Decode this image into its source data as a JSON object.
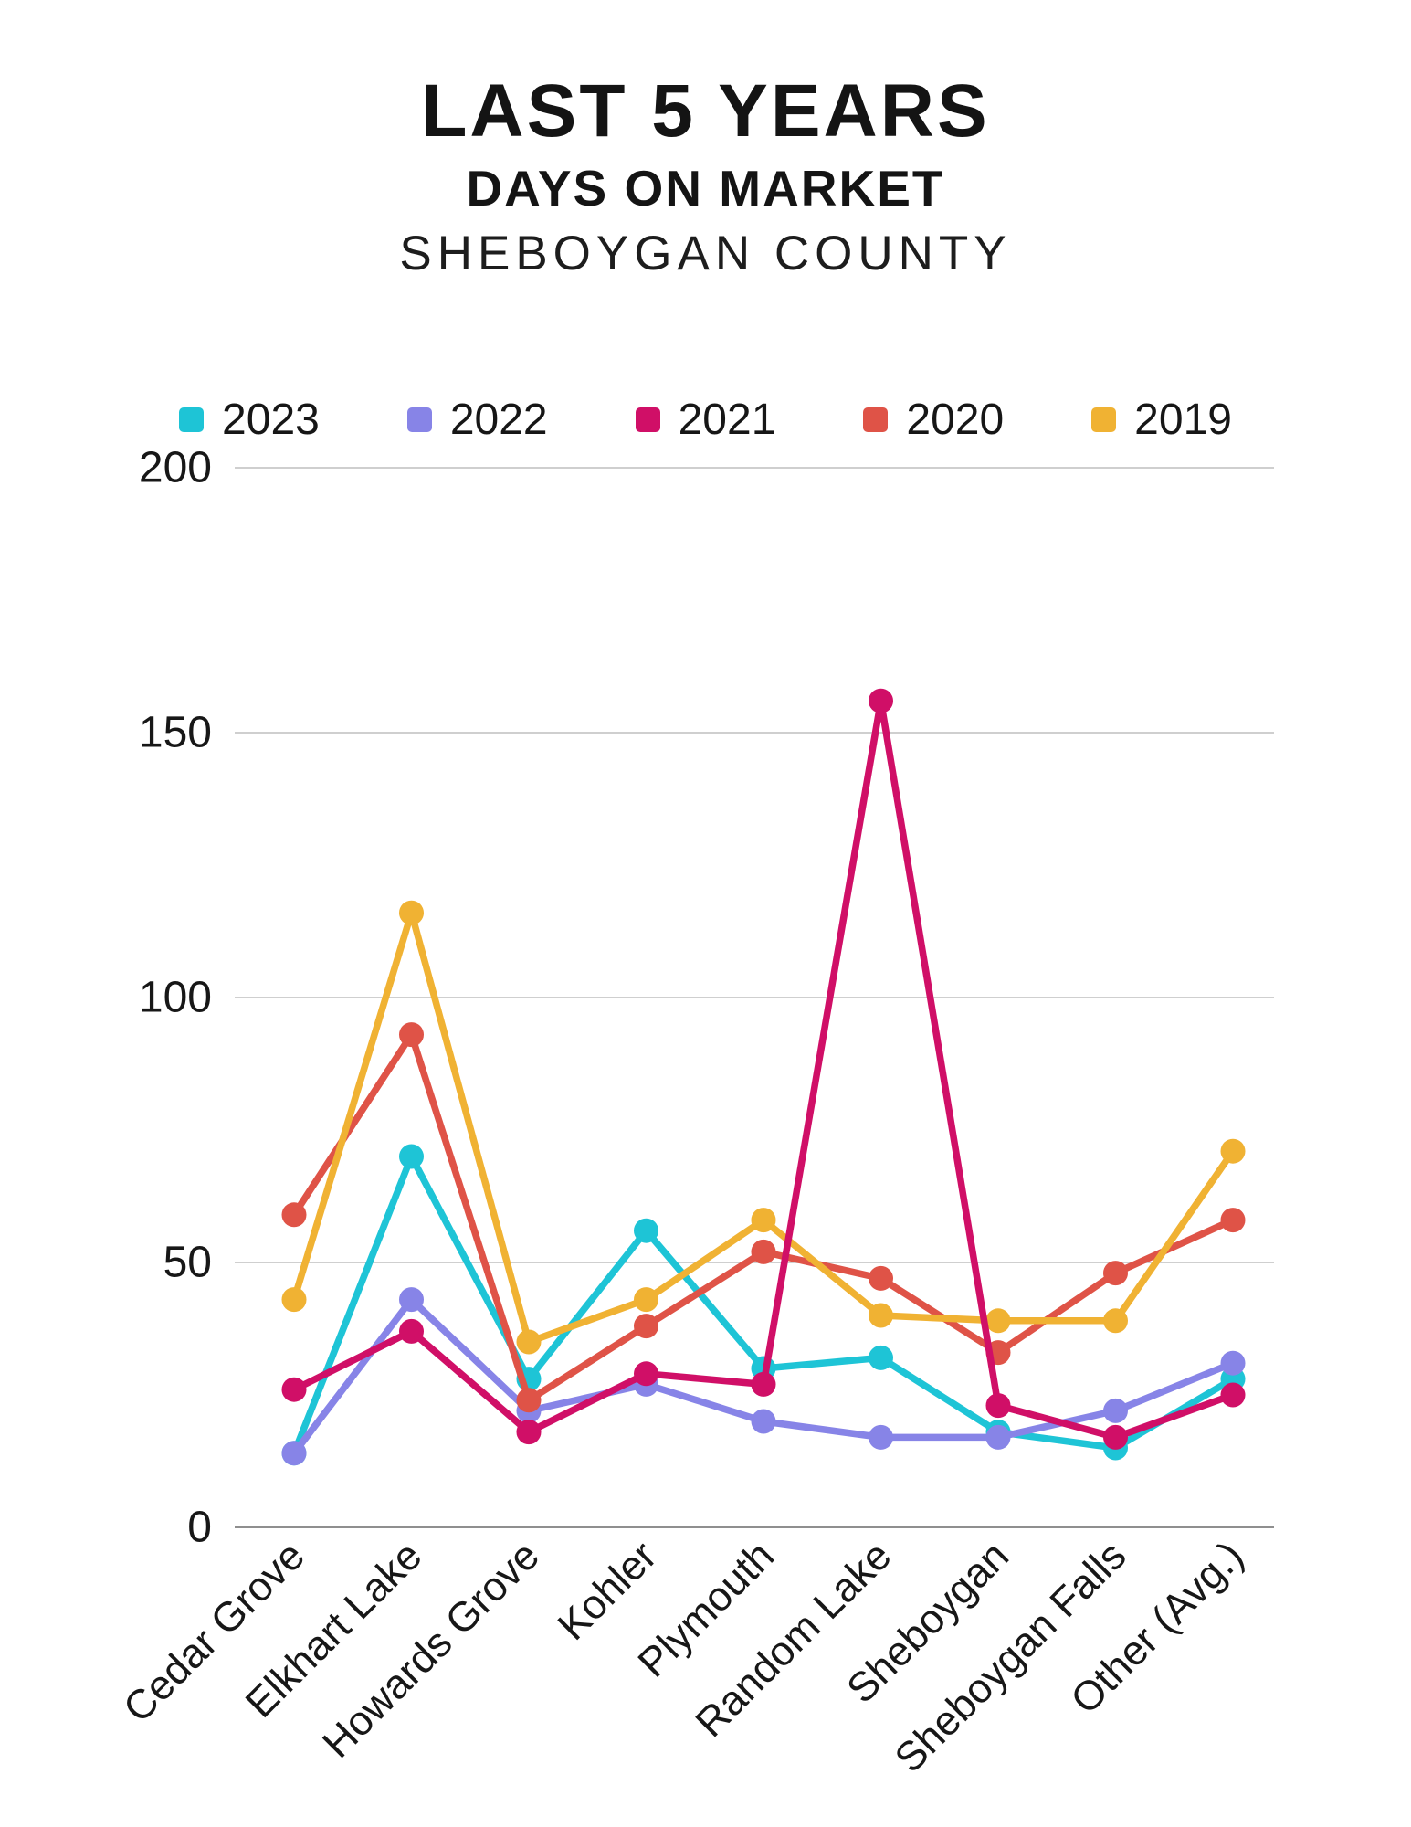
{
  "title": {
    "line1": "LAST 5 YEARS",
    "line2": "DAYS ON MARKET",
    "line3": "SHEBOYGAN COUNTY"
  },
  "chart_data": {
    "type": "line",
    "title": "LAST 5 YEARS DAYS ON MARKET SHEBOYGAN COUNTY",
    "xlabel": "",
    "ylabel": "",
    "categories": [
      "Cedar Grove",
      "Elkhart Lake",
      "Howards Grove",
      "Kohler",
      "Plymouth",
      "Random Lake",
      "Sheboygan",
      "Sheboygan Falls",
      "Other (Avg.)"
    ],
    "series": [
      {
        "name": "2023",
        "color": "#1ec4d6",
        "values": [
          14,
          70,
          28,
          56,
          30,
          32,
          18,
          15,
          28
        ]
      },
      {
        "name": "2022",
        "color": "#8784e7",
        "values": [
          14,
          43,
          22,
          27,
          20,
          17,
          17,
          22,
          31
        ]
      },
      {
        "name": "2021",
        "color": "#d00f67",
        "values": [
          26,
          37,
          18,
          29,
          27,
          156,
          23,
          17,
          25
        ]
      },
      {
        "name": "2020",
        "color": "#df5347",
        "values": [
          59,
          93,
          24,
          38,
          52,
          47,
          33,
          48,
          58
        ]
      },
      {
        "name": "2019",
        "color": "#f0b233",
        "values": [
          43,
          116,
          35,
          43,
          58,
          40,
          39,
          39,
          71
        ]
      }
    ],
    "yticks": [
      0,
      50,
      100,
      150,
      200
    ],
    "ylim": [
      0,
      200
    ],
    "grid": true,
    "legend_position": "top",
    "gridline_color": "#cfcfcf",
    "baseline_color": "#8f8f8f"
  }
}
